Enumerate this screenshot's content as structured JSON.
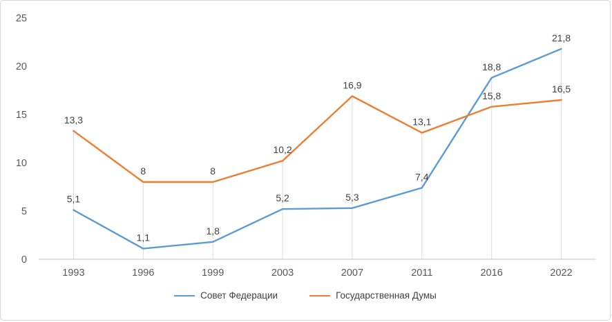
{
  "chart_data": {
    "type": "line",
    "title": "",
    "categories": [
      "1993",
      "1996",
      "1999",
      "2003",
      "2007",
      "2011",
      "2016",
      "2022"
    ],
    "series": [
      {
        "name": "Совет Федерации",
        "color": "#5B9BD5",
        "values": [
          5.1,
          1.1,
          1.8,
          5.2,
          5.3,
          7.4,
          18.8,
          21.8
        ],
        "labels": [
          "5,1",
          "1,1",
          "1,8",
          "5,2",
          "5,3",
          "7,4",
          "18,8",
          "21,8"
        ]
      },
      {
        "name": "Государственная Думы",
        "color": "#ED7D31",
        "values": [
          13.3,
          8,
          8,
          10.2,
          16.9,
          13.1,
          15.8,
          16.5
        ],
        "labels": [
          "13,3",
          "8",
          "8",
          "10,2",
          "16,9",
          "13,1",
          "15,8",
          "16,5"
        ]
      }
    ],
    "ylim": [
      0,
      25
    ],
    "yticks": [
      0,
      5,
      10,
      15,
      20,
      25
    ],
    "xlabel": "",
    "ylabel": "",
    "legend_position": "bottom",
    "grid": "vertical-droplines",
    "colors": {
      "axis_line": "#bfbfbf",
      "dropline": "#dcdcdc",
      "tick_text": "#595959",
      "data_label_text": "#404040"
    }
  }
}
